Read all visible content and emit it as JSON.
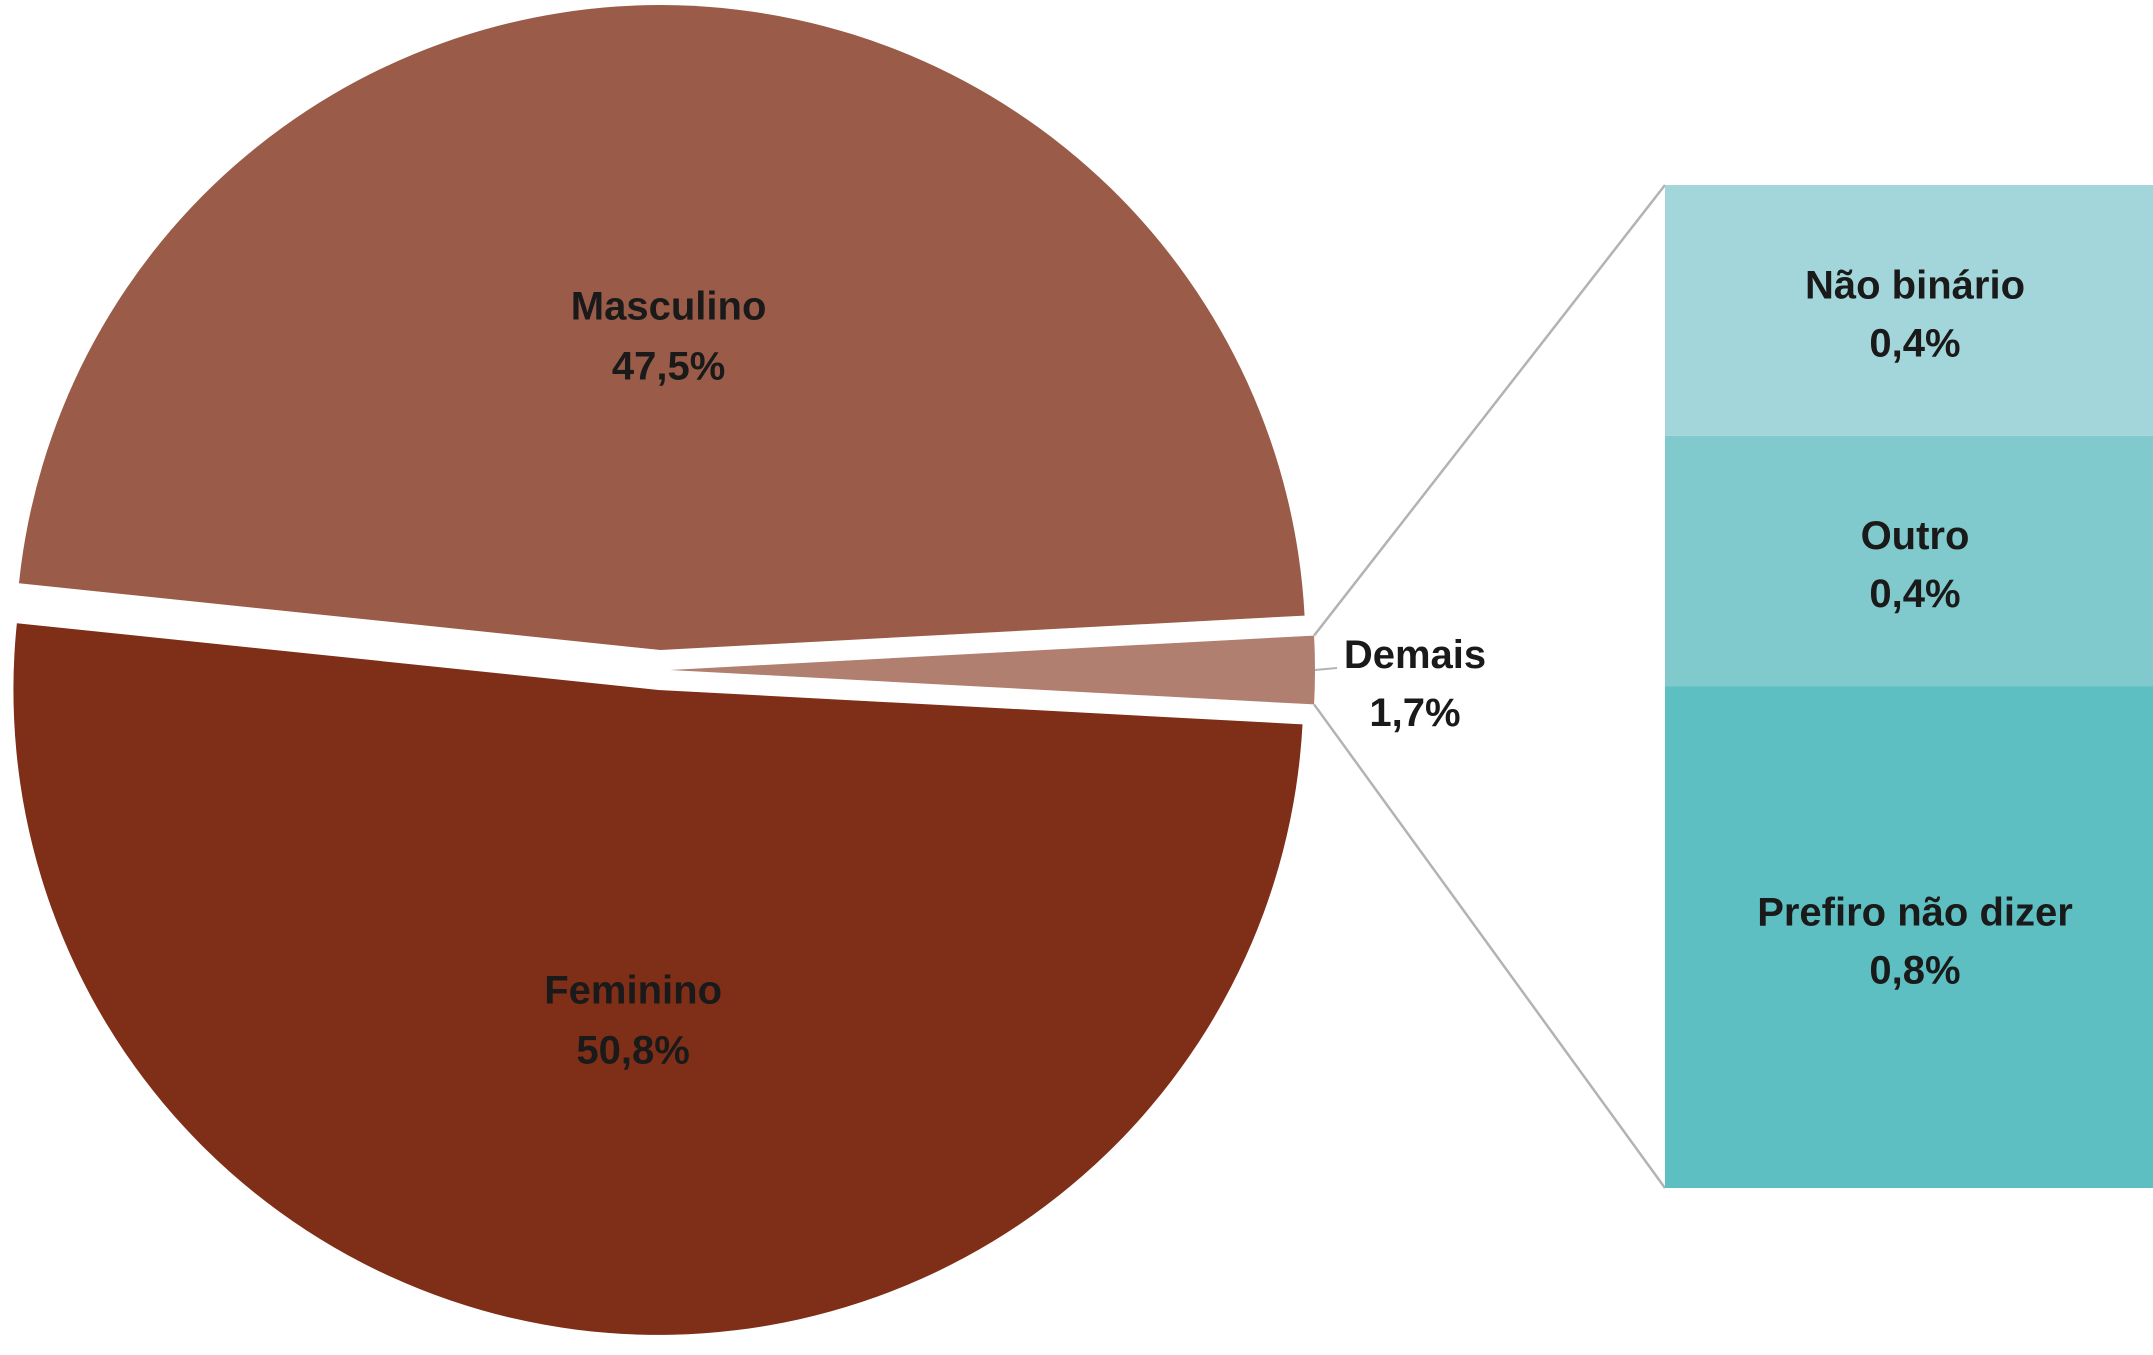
{
  "chart_data": {
    "type": "bar-of-pie",
    "pie": {
      "slices": [
        {
          "name": "Masculino",
          "value": 47.5,
          "label": "47,5%",
          "color": "#9A5B48"
        },
        {
          "name": "Feminino",
          "value": 50.8,
          "label": "50,8%",
          "color": "#7F2E18"
        },
        {
          "name": "Demais",
          "value": 1.7,
          "label": "1,7%",
          "color": "#B07F70"
        }
      ]
    },
    "breakdown": {
      "of": "Demais",
      "items": [
        {
          "name": "Não binário",
          "value": 0.4,
          "label": "0,4%",
          "color": "#A3D6DA"
        },
        {
          "name": "Outro",
          "value": 0.4,
          "label": "0,4%",
          "color": "#80CACD"
        },
        {
          "name": "Prefiro não dizer",
          "value": 0.8,
          "label": "0,8%",
          "color": "#5EBFC2"
        }
      ]
    },
    "connector_color": "#B3B3B3"
  }
}
